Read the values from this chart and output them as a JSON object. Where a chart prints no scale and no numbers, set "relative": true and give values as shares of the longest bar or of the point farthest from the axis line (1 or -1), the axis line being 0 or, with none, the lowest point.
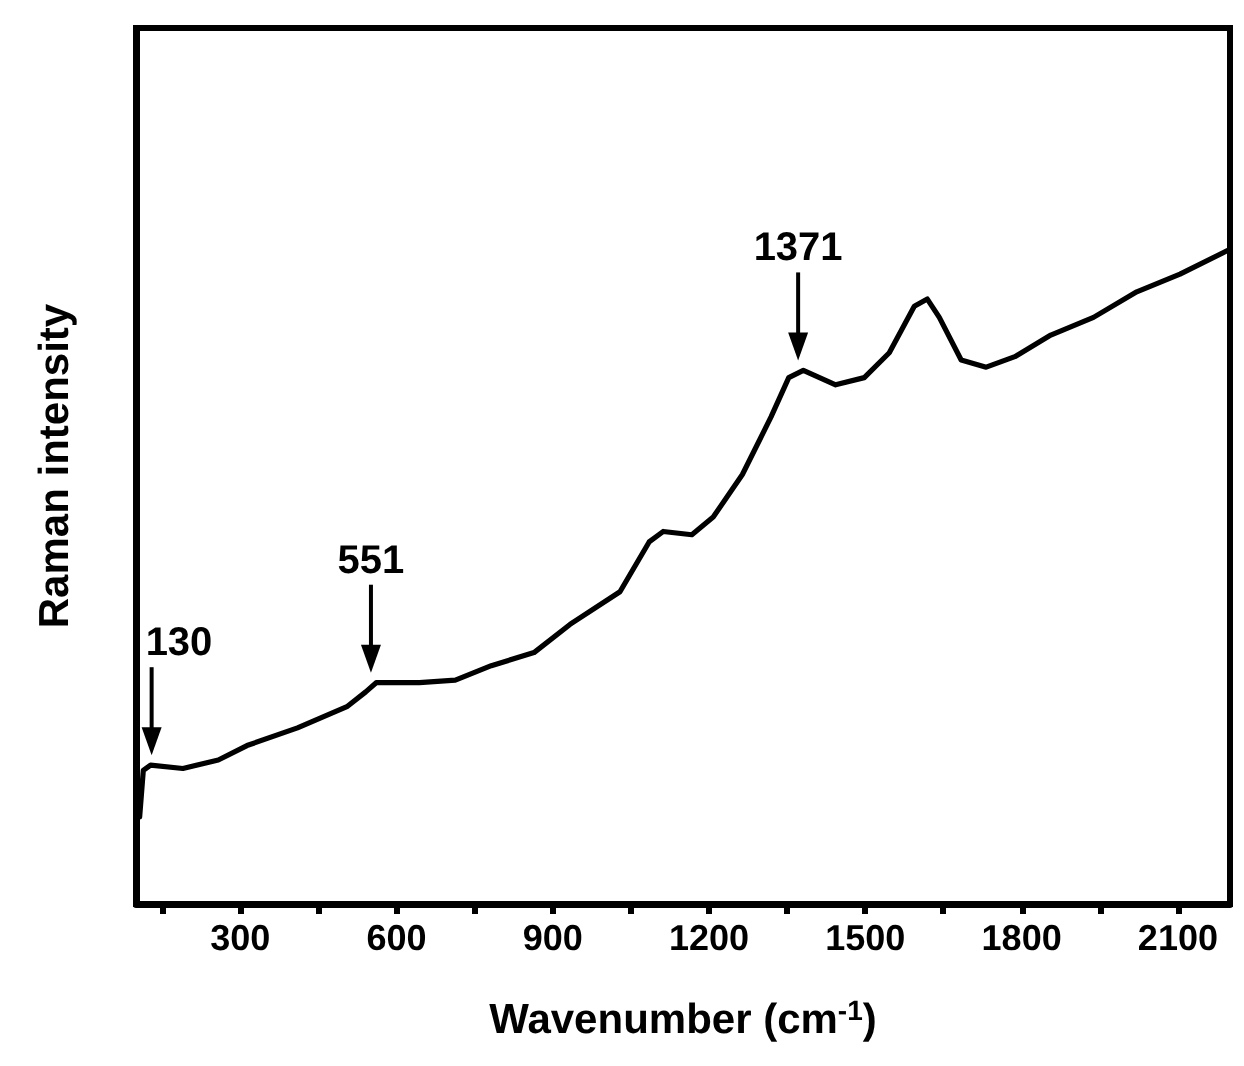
{
  "chart_data": {
    "type": "line",
    "relative": true,
    "xlabel": "Wavenumber (cm$^{-1}$)",
    "ylabel": "Raman intensity",
    "xlim": [
      100,
      2200
    ],
    "xticks": [
      {
        "value": 150,
        "label": null
      },
      300,
      {
        "value": 450,
        "label": null
      },
      600,
      {
        "value": 750,
        "label": null
      },
      900,
      {
        "value": 1050,
        "label": null
      },
      1200,
      {
        "value": 1350,
        "label": null
      },
      1500,
      {
        "value": 1650,
        "label": null
      },
      1800,
      {
        "value": 1950,
        "label": null
      },
      2100
    ],
    "grid": false,
    "marker": "none",
    "line_style": "solid",
    "series": [
      {
        "color": "#000000",
        "x": [
          107,
          114,
          128,
          190,
          258,
          313,
          410,
          506,
          541,
          561,
          644,
          713,
          782,
          864,
          933,
          1029,
          1085,
          1112,
          1167,
          1208,
          1264,
          1319,
          1353,
          1381,
          1443,
          1498,
          1546,
          1594,
          1619,
          1642,
          1684,
          1732,
          1787,
          1856,
          1938,
          2021,
          2104,
          2200
        ],
        "values": [
          0.133,
          0.204,
          0.212,
          0.207,
          0.22,
          0.242,
          0.269,
          0.302,
          0.324,
          0.338,
          0.338,
          0.342,
          0.364,
          0.384,
          0.427,
          0.477,
          0.553,
          0.569,
          0.564,
          0.591,
          0.656,
          0.744,
          0.804,
          0.815,
          0.793,
          0.804,
          0.842,
          0.913,
          0.924,
          0.896,
          0.831,
          0.82,
          0.836,
          0.869,
          0.896,
          0.935,
          0.962,
          1
        ]
      }
    ],
    "annotations": [
      {
        "text": "130",
        "x": 130,
        "y": 0.212
      },
      {
        "text": "551",
        "x": 551,
        "y": 0.338
      },
      {
        "text": "1371",
        "x": 1371,
        "y": 0.815
      }
    ]
  }
}
